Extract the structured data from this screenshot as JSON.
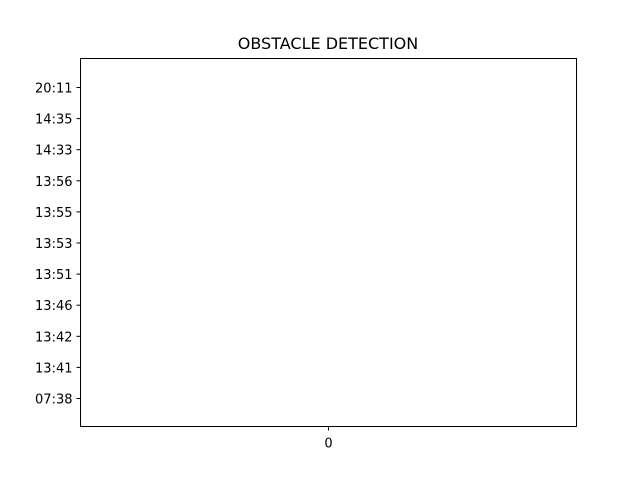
{
  "chart_data": {
    "type": "bar",
    "title": "OBSTACLE DETECTION",
    "xlabel": "",
    "ylabel": "",
    "x_ticks": [
      "0"
    ],
    "y_categories": [
      "07:38",
      "13:41",
      "13:42",
      "13:46",
      "13:51",
      "13:53",
      "13:55",
      "13:56",
      "14:33",
      "14:35",
      "20:11"
    ],
    "values": [],
    "grid": false,
    "legend": "none"
  }
}
